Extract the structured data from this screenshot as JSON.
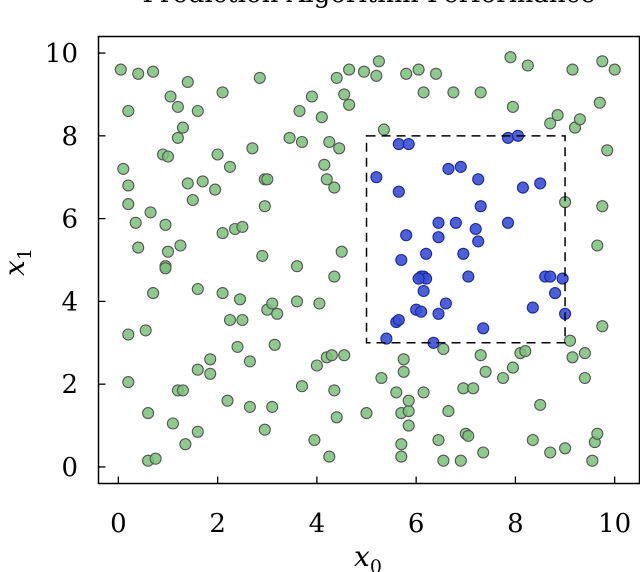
{
  "chart_data": {
    "type": "scatter",
    "title": "Prediction Algorithm Performance",
    "xlabel": "x",
    "xlabel_sub": "0",
    "ylabel": "x",
    "ylabel_sub": "1",
    "xlim": [
      -0.4,
      10.5
    ],
    "ylim": [
      -0.4,
      10.4
    ],
    "xticks": [
      0,
      2,
      4,
      6,
      8,
      10
    ],
    "yticks": [
      0,
      2,
      4,
      6,
      8,
      10
    ],
    "grid": false,
    "region": {
      "x": [
        5,
        9
      ],
      "y": [
        3,
        8
      ],
      "style": "dashed"
    },
    "colors": {
      "outside_fill": "#7ac17a",
      "inside_fill": "#3a4fd6",
      "marker_edge": "#555555",
      "inside_edge": "#1a2a9a"
    },
    "series": [
      {
        "color": "#7ac17a",
        "points": [
          [
            0.05,
            9.6
          ],
          [
            0.4,
            9.5
          ],
          [
            0.7,
            9.55
          ],
          [
            0.2,
            8.6
          ],
          [
            1.05,
            8.95
          ],
          [
            1.4,
            9.3
          ],
          [
            2.1,
            9.05
          ],
          [
            2.85,
            9.4
          ],
          [
            3.65,
            8.6
          ],
          [
            3.9,
            8.95
          ],
          [
            4.4,
            9.4
          ],
          [
            4.65,
            9.6
          ],
          [
            4.95,
            9.55
          ],
          [
            5.2,
            9.45
          ],
          [
            5.25,
            9.8
          ],
          [
            5.8,
            9.5
          ],
          [
            6.05,
            9.6
          ],
          [
            6.4,
            9.5
          ],
          [
            6.15,
            9.05
          ],
          [
            6.75,
            9.05
          ],
          [
            7.3,
            9.05
          ],
          [
            7.9,
            9.9
          ],
          [
            8.25,
            9.7
          ],
          [
            9.15,
            9.6
          ],
          [
            9.75,
            9.8
          ],
          [
            10.0,
            9.6
          ],
          [
            7.95,
            8.7
          ],
          [
            8.7,
            8.3
          ],
          [
            8.85,
            8.5
          ],
          [
            9.2,
            8.2
          ],
          [
            9.3,
            8.4
          ],
          [
            9.7,
            8.8
          ],
          [
            9.85,
            7.65
          ],
          [
            1.2,
            8.7
          ],
          [
            1.3,
            8.2
          ],
          [
            1.2,
            7.95
          ],
          [
            1.6,
            8.6
          ],
          [
            0.9,
            7.55
          ],
          [
            1.0,
            7.5
          ],
          [
            2.0,
            7.55
          ],
          [
            2.25,
            7.25
          ],
          [
            2.7,
            7.7
          ],
          [
            3.45,
            7.95
          ],
          [
            3.7,
            7.85
          ],
          [
            4.25,
            7.85
          ],
          [
            4.45,
            7.7
          ],
          [
            4.1,
            8.45
          ],
          [
            4.55,
            9.0
          ],
          [
            4.65,
            8.75
          ],
          [
            5.35,
            8.15
          ],
          [
            0.1,
            7.2
          ],
          [
            0.2,
            6.8
          ],
          [
            0.2,
            6.35
          ],
          [
            0.35,
            5.9
          ],
          [
            0.65,
            6.15
          ],
          [
            0.95,
            5.85
          ],
          [
            1.4,
            6.85
          ],
          [
            1.7,
            6.9
          ],
          [
            1.5,
            6.45
          ],
          [
            1.95,
            6.7
          ],
          [
            2.95,
            6.95
          ],
          [
            3.0,
            6.95
          ],
          [
            4.15,
            7.3
          ],
          [
            4.2,
            6.95
          ],
          [
            4.35,
            6.75
          ],
          [
            2.1,
            5.65
          ],
          [
            2.35,
            5.75
          ],
          [
            2.5,
            5.8
          ],
          [
            2.9,
            5.1
          ],
          [
            2.95,
            6.3
          ],
          [
            0.4,
            5.3
          ],
          [
            1.0,
            5.2
          ],
          [
            1.25,
            5.35
          ],
          [
            0.95,
            4.85
          ],
          [
            0.95,
            4.8
          ],
          [
            0.7,
            4.2
          ],
          [
            1.6,
            4.3
          ],
          [
            2.1,
            4.2
          ],
          [
            2.45,
            4.05
          ],
          [
            3.0,
            3.8
          ],
          [
            3.1,
            3.95
          ],
          [
            3.6,
            4.0
          ],
          [
            3.6,
            4.85
          ],
          [
            4.05,
            3.95
          ],
          [
            4.35,
            4.6
          ],
          [
            4.5,
            5.2
          ],
          [
            2.25,
            3.55
          ],
          [
            2.5,
            3.55
          ],
          [
            3.2,
            3.7
          ],
          [
            0.2,
            3.2
          ],
          [
            0.55,
            3.3
          ],
          [
            2.4,
            2.9
          ],
          [
            2.65,
            2.55
          ],
          [
            3.15,
            2.95
          ],
          [
            1.85,
            2.6
          ],
          [
            1.6,
            2.35
          ],
          [
            1.85,
            2.25
          ],
          [
            0.2,
            2.05
          ],
          [
            1.2,
            1.85
          ],
          [
            1.3,
            1.85
          ],
          [
            2.2,
            1.6
          ],
          [
            2.65,
            1.45
          ],
          [
            3.1,
            1.45
          ],
          [
            3.7,
            1.95
          ],
          [
            4.0,
            2.45
          ],
          [
            4.2,
            2.65
          ],
          [
            4.3,
            2.7
          ],
          [
            4.55,
            2.7
          ],
          [
            4.35,
            1.85
          ],
          [
            4.4,
            1.2
          ],
          [
            0.6,
            1.3
          ],
          [
            1.1,
            1.05
          ],
          [
            0.6,
            0.15
          ],
          [
            0.75,
            0.2
          ],
          [
            1.35,
            0.55
          ],
          [
            1.6,
            0.85
          ],
          [
            2.95,
            0.9
          ],
          [
            3.95,
            0.65
          ],
          [
            4.25,
            0.25
          ],
          [
            5.0,
            1.3
          ],
          [
            5.3,
            2.15
          ],
          [
            5.6,
            1.8
          ],
          [
            5.75,
            2.3
          ],
          [
            5.75,
            2.6
          ],
          [
            5.7,
            1.3
          ],
          [
            5.85,
            1.0
          ],
          [
            5.85,
            1.35
          ],
          [
            5.85,
            1.6
          ],
          [
            5.7,
            0.55
          ],
          [
            5.7,
            0.25
          ],
          [
            6.15,
            1.8
          ],
          [
            6.45,
            0.65
          ],
          [
            6.55,
            0.15
          ],
          [
            6.65,
            1.35
          ],
          [
            6.9,
            0.15
          ],
          [
            7.0,
            0.8
          ],
          [
            7.05,
            0.75
          ],
          [
            6.95,
            1.9
          ],
          [
            7.15,
            1.9
          ],
          [
            7.3,
            2.7
          ],
          [
            7.4,
            2.3
          ],
          [
            7.35,
            0.35
          ],
          [
            7.75,
            2.15
          ],
          [
            7.95,
            2.4
          ],
          [
            8.1,
            2.75
          ],
          [
            8.2,
            2.8
          ],
          [
            8.35,
            0.65
          ],
          [
            8.5,
            1.5
          ],
          [
            8.7,
            0.35
          ],
          [
            9.0,
            0.45
          ],
          [
            9.1,
            3.05
          ],
          [
            9.15,
            2.65
          ],
          [
            9.4,
            2.75
          ],
          [
            9.4,
            2.15
          ],
          [
            9.55,
            0.15
          ],
          [
            9.6,
            0.6
          ],
          [
            9.65,
            0.8
          ],
          [
            9.65,
            5.35
          ],
          [
            9.75,
            3.4
          ],
          [
            9.75,
            6.3
          ],
          [
            9.0,
            6.4
          ],
          [
            6.55,
            2.85
          ]
        ]
      },
      {
        "color": "#3a4fd6",
        "points": [
          [
            5.65,
            7.8
          ],
          [
            5.85,
            7.8
          ],
          [
            6.9,
            7.25
          ],
          [
            6.65,
            7.2
          ],
          [
            7.25,
            6.95
          ],
          [
            5.2,
            7.0
          ],
          [
            5.65,
            6.65
          ],
          [
            7.85,
            7.95
          ],
          [
            8.05,
            8.0
          ],
          [
            8.15,
            6.75
          ],
          [
            8.5,
            6.85
          ],
          [
            7.3,
            6.3
          ],
          [
            6.45,
            5.9
          ],
          [
            6.8,
            5.9
          ],
          [
            6.45,
            5.55
          ],
          [
            7.2,
            5.75
          ],
          [
            7.85,
            5.9
          ],
          [
            5.8,
            5.6
          ],
          [
            6.2,
            5.15
          ],
          [
            6.95,
            5.15
          ],
          [
            7.25,
            5.45
          ],
          [
            5.7,
            5.0
          ],
          [
            6.1,
            4.6
          ],
          [
            6.15,
            4.6
          ],
          [
            6.2,
            4.55
          ],
          [
            6.05,
            4.55
          ],
          [
            6.15,
            4.25
          ],
          [
            7.05,
            4.6
          ],
          [
            5.6,
            3.5
          ],
          [
            5.65,
            3.55
          ],
          [
            5.4,
            3.1
          ],
          [
            6.0,
            3.8
          ],
          [
            6.1,
            3.75
          ],
          [
            6.45,
            3.7
          ],
          [
            6.6,
            3.95
          ],
          [
            7.35,
            3.35
          ],
          [
            6.35,
            3.0
          ],
          [
            8.35,
            3.85
          ],
          [
            8.6,
            4.6
          ],
          [
            8.7,
            4.6
          ],
          [
            8.8,
            4.2
          ],
          [
            8.95,
            4.55
          ],
          [
            9.0,
            3.7
          ]
        ]
      }
    ]
  }
}
